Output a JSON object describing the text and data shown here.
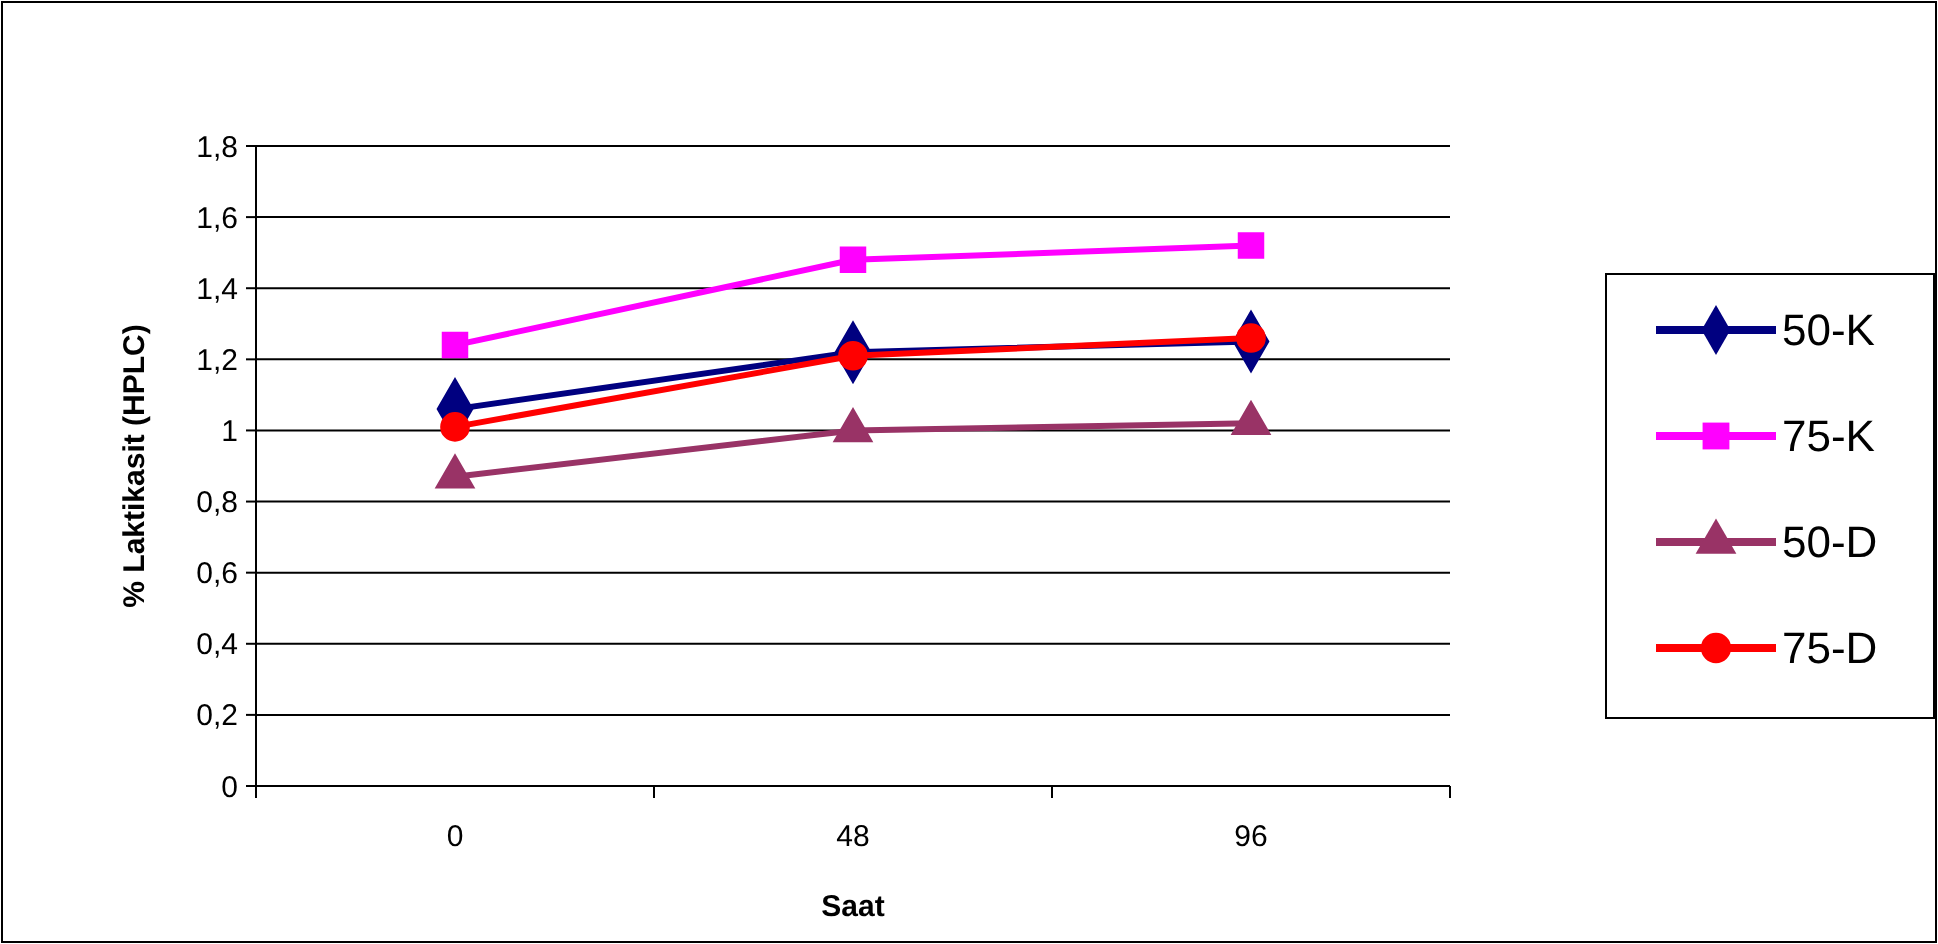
{
  "chart_data": {
    "type": "line",
    "xlabel": "Saat",
    "ylabel": "% Laktikasit (HPLC)",
    "categories": [
      "0",
      "48",
      "96"
    ],
    "ylim": [
      0,
      1.8
    ],
    "yticks": [
      {
        "value": 0,
        "label": "0"
      },
      {
        "value": 0.2,
        "label": "0,2"
      },
      {
        "value": 0.4,
        "label": "0,4"
      },
      {
        "value": 0.6,
        "label": "0,6"
      },
      {
        "value": 0.8,
        "label": "0,8"
      },
      {
        "value": 1,
        "label": "1"
      },
      {
        "value": 1.2,
        "label": "1,2"
      },
      {
        "value": 1.4,
        "label": "1,4"
      },
      {
        "value": 1.6,
        "label": "1,6"
      },
      {
        "value": 1.8,
        "label": "1,8"
      }
    ],
    "grid": "y",
    "legend": "right",
    "line_style": "solid",
    "series": [
      {
        "name": "50-K",
        "color": "#000080",
        "marker": "diamond",
        "values": [
          1.06,
          1.22,
          1.25
        ]
      },
      {
        "name": "75-K",
        "color": "#ff00ff",
        "marker": "square",
        "values": [
          1.24,
          1.48,
          1.52
        ]
      },
      {
        "name": "50-D",
        "color": "#993366",
        "marker": "triangle",
        "values": [
          0.87,
          1.0,
          1.02
        ]
      },
      {
        "name": "75-D",
        "color": "#ff0000",
        "marker": "circle",
        "values": [
          1.01,
          1.21,
          1.26
        ]
      }
    ]
  }
}
